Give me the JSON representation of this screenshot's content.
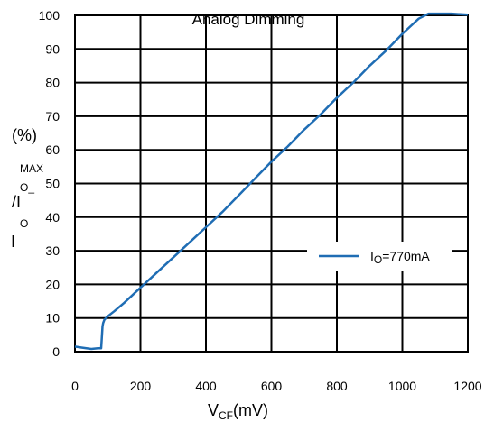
{
  "chart_data": {
    "type": "line",
    "title": "Analog Dimming",
    "xlabel": {
      "main": "V",
      "sub": "CF",
      "unit": "(mV)"
    },
    "ylabel": {
      "i1": "I",
      "o1": "O",
      "slash": "/I",
      "o2": "O_",
      "max": "MAX",
      "unit": "(%)"
    },
    "xlim": [
      0,
      1200
    ],
    "ylim": [
      0,
      100
    ],
    "x_ticks": [
      "0",
      "200",
      "400",
      "600",
      "800",
      "1000",
      "1200"
    ],
    "y_ticks": [
      "0",
      "10",
      "20",
      "30",
      "40",
      "50",
      "60",
      "70",
      "80",
      "90",
      "100"
    ],
    "grid": true,
    "legend": {
      "placement": "right-middle"
    },
    "series": [
      {
        "name": {
          "main": "I",
          "sub": "O",
          "rest": "=770mA"
        },
        "color": "#1f6db4",
        "x": [
          0,
          20,
          50,
          70,
          80,
          82,
          84,
          86,
          90,
          100,
          120,
          150,
          200,
          250,
          300,
          350,
          400,
          450,
          500,
          550,
          600,
          650,
          700,
          750,
          800,
          850,
          900,
          950,
          1000,
          1050,
          1080,
          1100,
          1150,
          1200
        ],
        "y": [
          1.5,
          1.2,
          0.8,
          1.0,
          1.0,
          4.0,
          7.5,
          8.5,
          9.5,
          10.5,
          12.0,
          14.5,
          19.0,
          23.5,
          28.0,
          32.5,
          37.0,
          41.5,
          46.5,
          51.5,
          56.5,
          61.0,
          66.0,
          70.5,
          75.5,
          80.0,
          85.0,
          89.5,
          94.5,
          99.0,
          100.5,
          100.5,
          100.5,
          100.2
        ]
      }
    ]
  }
}
